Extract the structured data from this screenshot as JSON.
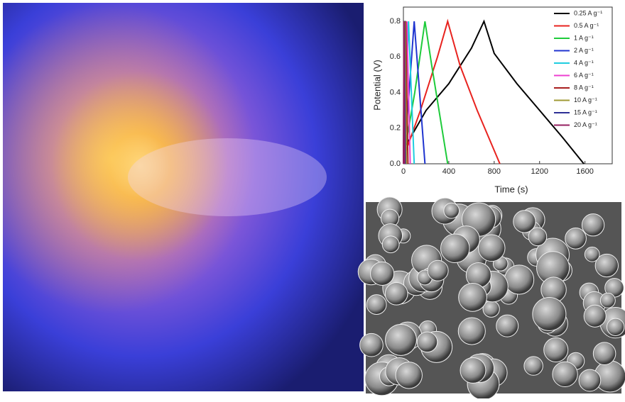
{
  "chart_data": {
    "type": "line",
    "xlabel": "Time (s)",
    "ylabel": "Potential (V)",
    "xlim": [
      0,
      1840
    ],
    "xticks": [
      0,
      400,
      800,
      1200,
      1600
    ],
    "ylim": [
      0,
      0.88
    ],
    "yticks": [
      {
        "value": 0,
        "label": "0.0"
      },
      0.2,
      0.4,
      0.6,
      0.8
    ],
    "legend": "upper right",
    "series": [
      {
        "name": "0.25 A g⁻¹",
        "color": "#000000",
        "x": [
          20,
          200,
          400,
          600,
          710,
          800,
          1000,
          1200,
          1400,
          1590
        ],
        "values": [
          0.1,
          0.3,
          0.45,
          0.65,
          0.8,
          0.62,
          0.45,
          0.3,
          0.15,
          0
        ]
      },
      {
        "name": "0.5 A g⁻¹",
        "color": "#e8231f",
        "x": [
          10,
          150,
          300,
          390,
          500,
          650,
          850
        ],
        "values": [
          0.05,
          0.3,
          0.6,
          0.8,
          0.55,
          0.3,
          0
        ]
      },
      {
        "name": "1 A g⁻¹",
        "color": "#1ecb3b",
        "x": [
          5,
          100,
          190,
          250,
          390
        ],
        "values": [
          0.05,
          0.4,
          0.8,
          0.55,
          0
        ]
      },
      {
        "name": "2 A g⁻¹",
        "color": "#2035d0",
        "x": [
          0,
          50,
          95,
          190
        ],
        "values": [
          0,
          0.4,
          0.8,
          0
        ]
      },
      {
        "name": "4 A g⁻¹",
        "color": "#1fcde0",
        "x": [
          0,
          45,
          95
        ],
        "values": [
          0,
          0.8,
          0
        ]
      },
      {
        "name": "6 A g⁻¹",
        "color": "#ee3fd0",
        "x": [
          0,
          30,
          60
        ],
        "values": [
          0,
          0.8,
          0
        ]
      },
      {
        "name": "8 A g⁻¹",
        "color": "#a81f1f",
        "x": [
          0,
          20,
          40
        ],
        "values": [
          0,
          0.8,
          0
        ]
      },
      {
        "name": "10 A g⁻¹",
        "color": "#a09a35",
        "x": [
          0,
          13,
          26
        ],
        "values": [
          0,
          0.8,
          0
        ]
      },
      {
        "name": "15 A g⁻¹",
        "color": "#2d2f95",
        "x": [
          0,
          8,
          16
        ],
        "values": [
          0,
          0.8,
          0
        ]
      },
      {
        "name": "20 A g⁻¹",
        "color": "#952060",
        "x": [
          0,
          5,
          10
        ],
        "values": [
          0,
          0.8,
          0
        ]
      }
    ]
  }
}
